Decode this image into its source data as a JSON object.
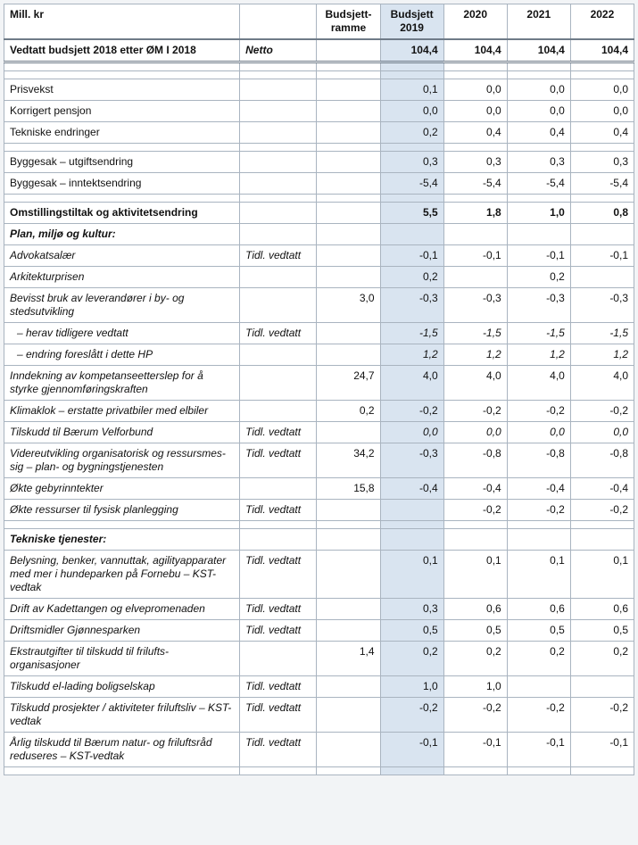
{
  "headers": {
    "unit_label": "Mill. kr",
    "col_note": "",
    "col_ramme": "Budsjett-ramme",
    "col_b2019": "Budsjett 2019",
    "col_2020": "2020",
    "col_2021": "2021",
    "col_2022": "2022"
  },
  "note_text": "Tidl. vedtatt",
  "colors": {
    "highlight": "#d9e4f0",
    "border": "#a9b4c0",
    "background": "#ffffff"
  },
  "rows": [
    {
      "label": "Vedtatt budsjett 2018 etter ØM I 2018",
      "note": "Netto",
      "ramme": "",
      "b2019": "104,4",
      "y20": "104,4",
      "y21": "104,4",
      "y22": "104,4",
      "style": "bold thicktop"
    },
    {
      "blank": true,
      "style": "mini dbltop"
    },
    {
      "blank": true,
      "style": "mini"
    },
    {
      "label": "Prisvekst",
      "note": "",
      "ramme": "",
      "b2019": "0,1",
      "y20": "0,0",
      "y21": "0,0",
      "y22": "0,0"
    },
    {
      "label": "Korrigert pensjon",
      "note": "",
      "ramme": "",
      "b2019": "0,0",
      "y20": "0,0",
      "y21": "0,0",
      "y22": "0,0"
    },
    {
      "label": "Tekniske endringer",
      "note": "",
      "ramme": "",
      "b2019": "0,2",
      "y20": "0,4",
      "y21": "0,4",
      "y22": "0,4"
    },
    {
      "blank": true,
      "style": "mini"
    },
    {
      "label": "Byggesak – utgiftsendring",
      "note": "",
      "ramme": "",
      "b2019": "0,3",
      "y20": "0,3",
      "y21": "0,3",
      "y22": "0,3"
    },
    {
      "label": "Byggesak – inntektsendring",
      "note": "",
      "ramme": "",
      "b2019": "-5,4",
      "y20": "-5,4",
      "y21": "-5,4",
      "y22": "-5,4"
    },
    {
      "blank": true,
      "style": "mini"
    },
    {
      "label": "Omstillingstiltak og aktivitetsendring",
      "note": "",
      "ramme": "",
      "b2019": "5,5",
      "y20": "1,8",
      "y21": "1,0",
      "y22": "0,8",
      "style": "bold"
    },
    {
      "label": "Plan, miljø og kultur:",
      "note": "",
      "ramme": "",
      "b2019": "",
      "y20": "",
      "y21": "",
      "y22": "",
      "style": "section-head"
    },
    {
      "label": "Advokatsalær",
      "note": "Tidl. vedtatt",
      "ramme": "",
      "b2019": "-0,1",
      "y20": "-0,1",
      "y21": "-0,1",
      "y22": "-0,1",
      "style": "sub-italic"
    },
    {
      "label": "Arkitekturprisen",
      "note": "",
      "ramme": "",
      "b2019": "0,2",
      "y20": "",
      "y21": "0,2",
      "y22": "",
      "style": "sub-italic"
    },
    {
      "label": "Bevisst bruk av leverandører i by- og stedsutvikling",
      "note": "",
      "ramme": "3,0",
      "b2019": "-0,3",
      "y20": "-0,3",
      "y21": "-0,3",
      "y22": "-0,3",
      "style": "sub-italic"
    },
    {
      "label": " – herav tidligere vedtatt",
      "note": "Tidl. vedtatt",
      "ramme": "",
      "b2019": "-1,5",
      "y20": "-1,5",
      "y21": "-1,5",
      "y22": "-1,5",
      "style": "sub-italic indent all-italic"
    },
    {
      "label": " – endring foreslått i dette HP",
      "note": "",
      "ramme": "",
      "b2019": "1,2",
      "y20": "1,2",
      "y21": "1,2",
      "y22": "1,2",
      "style": "sub-italic indent all-italic"
    },
    {
      "label": "Inndekning av kompetanseetterslep for å styrke gjennomføringskraften",
      "note": "",
      "ramme": "24,7",
      "b2019": "4,0",
      "y20": "4,0",
      "y21": "4,0",
      "y22": "4,0",
      "style": "sub-italic"
    },
    {
      "label": "Klimaklok – erstatte privatbiler med elbiler",
      "note": "",
      "ramme": "0,2",
      "b2019": "-0,2",
      "y20": "-0,2",
      "y21": "-0,2",
      "y22": "-0,2",
      "style": "sub-italic"
    },
    {
      "label": "Tilskudd til Bærum Velforbund",
      "note": "Tidl. vedtatt",
      "ramme": "",
      "b2019": "0,0",
      "y20": "0,0",
      "y21": "0,0",
      "y22": "0,0",
      "style": "sub-italic all-italic"
    },
    {
      "label": "Videreutvikling organisatorisk og ressursmes-sig – plan- og bygningstjenesten",
      "note": "Tidl. vedtatt",
      "ramme": "34,2",
      "b2019": "-0,3",
      "y20": "-0,8",
      "y21": "-0,8",
      "y22": "-0,8",
      "style": "sub-italic"
    },
    {
      "label": "Økte gebyrinntekter",
      "note": "",
      "ramme": "15,8",
      "b2019": "-0,4",
      "y20": "-0,4",
      "y21": "-0,4",
      "y22": "-0,4",
      "style": "sub-italic"
    },
    {
      "label": "Økte ressurser til fysisk planlegging",
      "note": "Tidl. vedtatt",
      "ramme": "",
      "b2019": "",
      "y20": "-0,2",
      "y21": "-0,2",
      "y22": "-0,2",
      "style": "sub-italic"
    },
    {
      "blank": true,
      "style": "mini"
    },
    {
      "label": "Tekniske tjenester:",
      "note": "",
      "ramme": "",
      "b2019": "",
      "y20": "",
      "y21": "",
      "y22": "",
      "style": "section-head"
    },
    {
      "label": "Belysning, benker, vannuttak, agilityapparater med mer i hundeparken på Fornebu – KST-vedtak",
      "note": "Tidl. vedtatt",
      "ramme": "",
      "b2019": "0,1",
      "y20": "0,1",
      "y21": "0,1",
      "y22": "0,1",
      "style": "sub-italic"
    },
    {
      "label": "Drift av Kadettangen og elvepromenaden",
      "note": "Tidl. vedtatt",
      "ramme": "",
      "b2019": "0,3",
      "y20": "0,6",
      "y21": "0,6",
      "y22": "0,6",
      "style": "sub-italic"
    },
    {
      "label": "Driftsmidler Gjønnesparken",
      "note": "Tidl. vedtatt",
      "ramme": "",
      "b2019": "0,5",
      "y20": "0,5",
      "y21": "0,5",
      "y22": "0,5",
      "style": "sub-italic"
    },
    {
      "label": "Ekstrautgifter til tilskudd til frilufts-organisasjoner",
      "note": "",
      "ramme": "1,4",
      "b2019": "0,2",
      "y20": "0,2",
      "y21": "0,2",
      "y22": "0,2",
      "style": "sub-italic"
    },
    {
      "label": "Tilskudd el-lading boligselskap",
      "note": "Tidl. vedtatt",
      "ramme": "",
      "b2019": "1,0",
      "y20": "1,0",
      "y21": "",
      "y22": "",
      "style": "sub-italic"
    },
    {
      "label": "Tilskudd prosjekter / aktiviteter friluftsliv – KST-vedtak",
      "note": "Tidl. vedtatt",
      "ramme": "",
      "b2019": "-0,2",
      "y20": "-0,2",
      "y21": "-0,2",
      "y22": "-0,2",
      "style": "sub-italic"
    },
    {
      "label": "Årlig tilskudd til Bærum natur- og friluftsråd reduseres – KST-vedtak",
      "note": "Tidl. vedtatt",
      "ramme": "",
      "b2019": "-0,1",
      "y20": "-0,1",
      "y21": "-0,1",
      "y22": "-0,1",
      "style": "sub-italic"
    },
    {
      "blank": true,
      "style": "mini"
    }
  ]
}
